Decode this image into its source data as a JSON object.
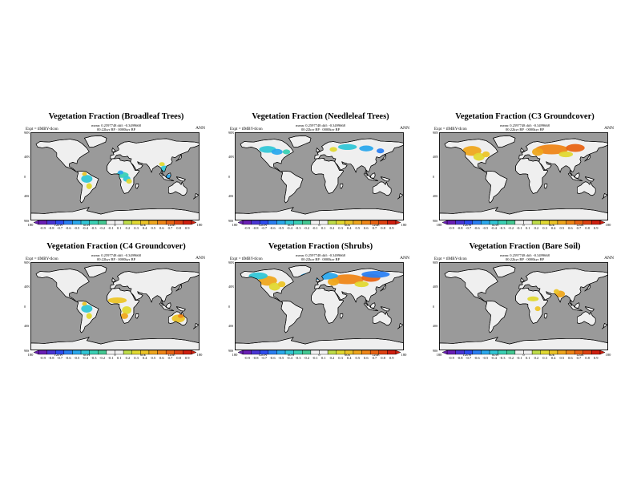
{
  "figure": {
    "panels": [
      {
        "title": "Vegetation Fraction (Broadleaf Trees)",
        "mean_line": "mean: 0.2597748 diff: -0.3499668",
        "info_line": "00:22kyr BP · 0000kyr BP",
        "expt_label": "Expt = tIMBY-tIcon",
        "season": "ANN",
        "highlight_regions": [
          "tropical-africa",
          "south-america",
          "southeast-asia"
        ]
      },
      {
        "title": "Vegetation Fraction (Needleleaf Trees)",
        "mean_line": "mean: 0.2597748 diff: -0.3499668",
        "info_line": "00:22kyr BP · 0000kyr BP",
        "expt_label": "Expt = tIMBY-tIcon",
        "season": "ANN",
        "highlight_regions": [
          "boreal-north-america",
          "boreal-eurasia"
        ]
      },
      {
        "title": "Vegetation Fraction (C3 Groundcover)",
        "mean_line": "mean: 0.2597748 diff: -0.3499668",
        "info_line": "00:22kyr BP · 0000kyr BP",
        "expt_label": "Expt = tIMBY-tIcon",
        "season": "ANN",
        "highlight_regions": [
          "north-america",
          "eurasia"
        ]
      },
      {
        "title": "Vegetation Fraction (C4 Groundcover)",
        "mean_line": "mean: 0.2597748 diff: -0.3499668",
        "info_line": "00:22kyr BP · 0000kyr BP",
        "expt_label": "Expt = tIMBY-tIcon",
        "season": "ANN",
        "highlight_regions": [
          "africa-sahel",
          "south-america",
          "australia"
        ]
      },
      {
        "title": "Vegetation Fraction (Shrubs)",
        "mean_line": "mean: 0.2597748 diff: -0.3499668",
        "info_line": "00:22kyr BP · 0000kyr BP",
        "expt_label": "Expt = tIMBY-tIcon",
        "season": "ANN",
        "highlight_regions": [
          "north-america",
          "eurasia",
          "boreal"
        ]
      },
      {
        "title": "Vegetation Fraction (Bare Soil)",
        "mean_line": "mean: 0.2597748 diff: -0.3499668",
        "info_line": "00:22kyr BP · 0000kyr BP",
        "expt_label": "Expt = tIMBY-tIcon",
        "season": "ANN",
        "highlight_regions": [
          "south-asia",
          "africa"
        ]
      }
    ],
    "lat_labels": [
      "90N",
      "40N",
      "0",
      "40S",
      "90S"
    ],
    "lon_labels": [
      "180",
      "120W",
      "60W",
      "0",
      "60E",
      "120E",
      "180"
    ],
    "colorbar_ticks": [
      "-0.9",
      "-0.8",
      "-0.7",
      "-0.6",
      "-0.5",
      "-0.4",
      "-0.3",
      "-0.2",
      "-0.1",
      "0.1",
      "0.2",
      "0.3",
      "0.4",
      "0.5",
      "0.6",
      "0.7",
      "0.8",
      "0.9"
    ],
    "colors": {
      "ocean": "#9a9a9a",
      "land": "#efefef",
      "palette": [
        "#6a1fb5",
        "#4a36d4",
        "#2e4df0",
        "#2a7ff2",
        "#2ba8ec",
        "#32c6d6",
        "#3ad0b4",
        "#44c892",
        "#f2f2f2",
        "#f2f2f2",
        "#bedc4a",
        "#e0d832",
        "#ecc428",
        "#eea61e",
        "#ee8618",
        "#e86414",
        "#de4212",
        "#cf1f10"
      ]
    }
  }
}
